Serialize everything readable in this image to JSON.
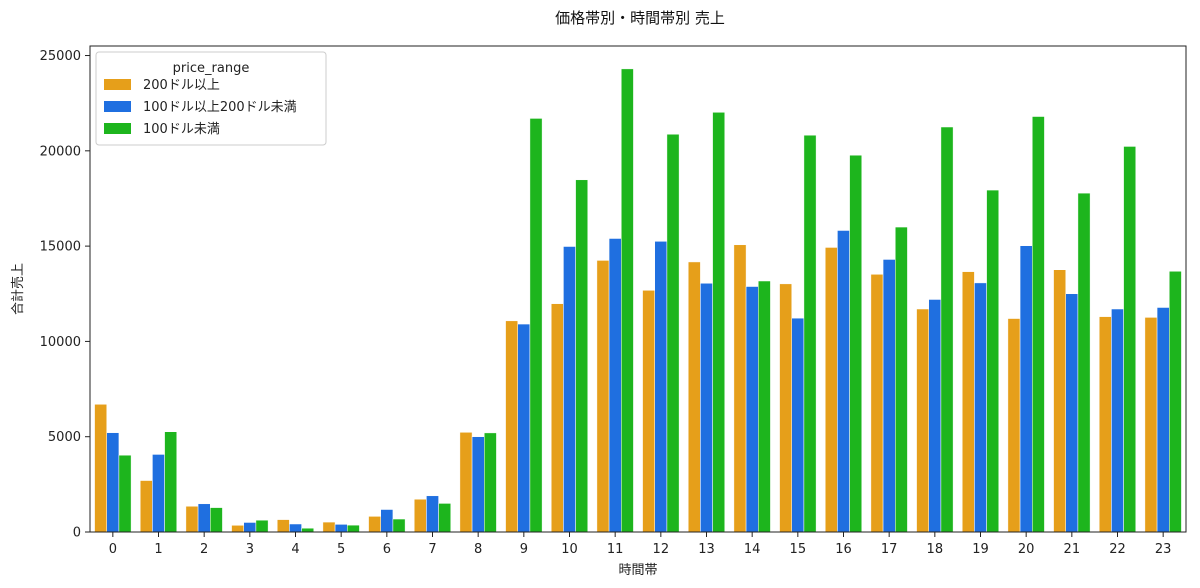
{
  "chart_data": {
    "type": "bar",
    "title": "価格帯別・時間帯別 売上",
    "xlabel": "時間帯",
    "ylabel": "合計売上",
    "ylim": [
      0,
      25500
    ],
    "yticks": [
      0,
      5000,
      10000,
      15000,
      20000,
      25000
    ],
    "grid": false,
    "legend": {
      "title": "price_range",
      "placement": "top-left"
    },
    "categories": [
      "0",
      "1",
      "2",
      "3",
      "4",
      "5",
      "6",
      "7",
      "8",
      "9",
      "10",
      "11",
      "12",
      "13",
      "14",
      "15",
      "16",
      "17",
      "18",
      "19",
      "20",
      "21",
      "22",
      "23"
    ],
    "series": [
      {
        "name": "200ドル以上",
        "color": "#E69F1A",
        "values": [
          6700,
          2700,
          1350,
          350,
          650,
          520,
          820,
          1720,
          5230,
          11080,
          11980,
          14250,
          12680,
          14170,
          15070,
          13020,
          14930,
          13520,
          11700,
          13660,
          11200,
          13760,
          11300,
          11260
        ]
      },
      {
        "name": "100ドル以上200ドル未満",
        "color": "#1F6FE0",
        "values": [
          5210,
          4070,
          1480,
          500,
          420,
          400,
          1180,
          1900,
          5000,
          10910,
          14980,
          15400,
          15250,
          13050,
          12880,
          11220,
          15820,
          14300,
          12200,
          13070,
          15020,
          12500,
          11700,
          11780
        ]
      },
      {
        "name": "100ドル未満",
        "color": "#1DB51D",
        "values": [
          4030,
          5260,
          1280,
          620,
          200,
          360,
          680,
          1500,
          5200,
          21700,
          18480,
          24300,
          20870,
          22020,
          13170,
          20820,
          19770,
          16000,
          21250,
          17940,
          21800,
          17780,
          20230,
          13680
        ]
      }
    ]
  }
}
